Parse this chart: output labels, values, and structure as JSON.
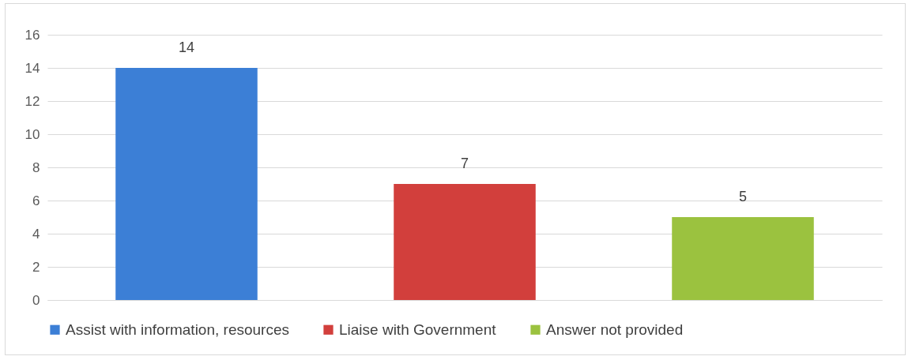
{
  "chart_data": {
    "type": "bar",
    "stacked": true,
    "categories": [
      null,
      null,
      null
    ],
    "series": [
      {
        "name": "Assist with information, resources",
        "color": "#3c7fd6",
        "values": [
          14,
          null,
          null
        ]
      },
      {
        "name": "Liaise with Government",
        "color": "#d23f3c",
        "values": [
          null,
          7,
          null
        ]
      },
      {
        "name": "Answer not provided",
        "color": "#9bc23f",
        "values": [
          null,
          null,
          5
        ]
      }
    ],
    "ylim": [
      0,
      16
    ],
    "yticks": [
      0,
      2,
      4,
      6,
      8,
      10,
      12,
      14,
      16
    ],
    "grid": "y",
    "data_labels": true,
    "legend": "bottom",
    "tick_labels": "y"
  }
}
